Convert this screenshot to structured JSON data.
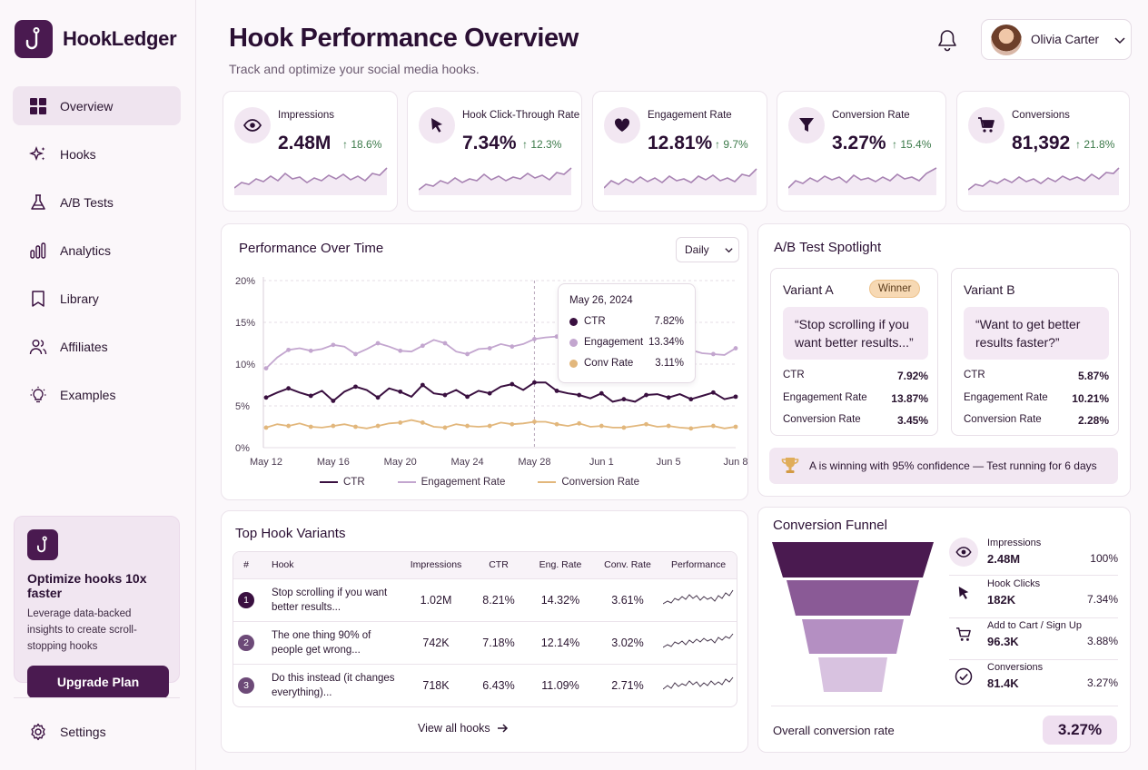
{
  "app": {
    "name": "HookLedger"
  },
  "sidebar": {
    "items": [
      {
        "label": "Overview",
        "icon": "grid-icon"
      },
      {
        "label": "Hooks",
        "icon": "sparkle-icon"
      },
      {
        "label": "A/B Tests",
        "icon": "flask-icon"
      },
      {
        "label": "Analytics",
        "icon": "bar-chart-icon"
      },
      {
        "label": "Library",
        "icon": "bookmark-icon"
      },
      {
        "label": "Affiliates",
        "icon": "users-icon"
      },
      {
        "label": "Examples",
        "icon": "lightbulb-icon"
      }
    ],
    "upgrade": {
      "title": "Optimize hooks 10x faster",
      "text": "Leverage data-backed insights to create scroll-stopping hooks",
      "button": "Upgrade Plan"
    },
    "settings": "Settings"
  },
  "header": {
    "title": "Hook Performance Overview",
    "subtitle": "Track and optimize your social media hooks.",
    "user": "Olivia Carter"
  },
  "kpis": [
    {
      "label": "Impressions",
      "value": "2.48M",
      "change": "18.6%",
      "icon": "eye-icon"
    },
    {
      "label": "Hook Click-Through Rate",
      "value": "7.34%",
      "change": "12.3%",
      "icon": "cursor-icon"
    },
    {
      "label": "Engagement Rate",
      "value": "12.81%",
      "change": "9.7%",
      "icon": "heart-icon"
    },
    {
      "label": "Conversion Rate",
      "value": "3.27%",
      "change": "15.4%",
      "icon": "funnel-icon"
    },
    {
      "label": "Conversions",
      "value": "81,392",
      "change": "21.8%",
      "icon": "cart-icon"
    }
  ],
  "performance": {
    "title": "Performance Over Time",
    "range": "Daily",
    "tooltip": {
      "date": "May 26, 2024",
      "rows": [
        {
          "label": "CTR",
          "value": "7.82%"
        },
        {
          "label": "Engagement",
          "value": "13.34%"
        },
        {
          "label": "Conv Rate",
          "value": "3.11%"
        }
      ]
    },
    "legend": [
      "CTR",
      "Engagement Rate",
      "Conversion Rate"
    ]
  },
  "chart_data": {
    "type": "line",
    "title": "Performance Over Time",
    "x_ticks": [
      "May 12",
      "May 16",
      "May 20",
      "May 24",
      "May 28",
      "Jun 1",
      "Jun 5",
      "Jun 8"
    ],
    "y_ticks": [
      "0%",
      "5%",
      "10%",
      "15%",
      "20%"
    ],
    "ylim": [
      0,
      20
    ],
    "grid": true,
    "legend_position": "bottom",
    "series": [
      {
        "name": "CTR",
        "color": "#3a1040",
        "values": [
          6.0,
          6.6,
          7.1,
          6.6,
          6.2,
          6.8,
          5.6,
          6.7,
          7.3,
          6.9,
          6.0,
          7.1,
          6.7,
          6.1,
          7.5,
          6.5,
          6.3,
          6.9,
          6.1,
          6.8,
          6.5,
          7.3,
          7.6,
          6.9,
          7.8,
          7.8,
          6.8,
          6.5,
          6.3,
          5.9,
          6.5,
          5.5,
          5.8,
          5.5,
          6.3,
          6.4,
          6.0,
          6.4,
          5.8,
          6.2,
          6.6,
          5.8,
          6.1
        ]
      },
      {
        "name": "Engagement Rate",
        "color": "#c3a6cf",
        "values": [
          9.5,
          10.8,
          11.7,
          11.9,
          11.6,
          11.8,
          12.3,
          12.1,
          11.2,
          11.8,
          12.5,
          12.1,
          11.6,
          11.5,
          12.2,
          12.9,
          12.5,
          11.5,
          11.2,
          11.8,
          11.9,
          12.4,
          12.1,
          12.4,
          13.0,
          13.2,
          13.3,
          13.0,
          12.8,
          12.0,
          11.1,
          11.6,
          11.8,
          11.3,
          11.6,
          11.2,
          10.8,
          11.7,
          11.7,
          11.3,
          11.2,
          11.1,
          11.9
        ]
      },
      {
        "name": "Conversion Rate",
        "color": "#e2b77c",
        "values": [
          2.4,
          2.8,
          2.6,
          2.9,
          2.5,
          2.4,
          2.6,
          2.8,
          2.5,
          2.3,
          2.6,
          2.9,
          3.0,
          3.3,
          3.0,
          2.5,
          2.4,
          2.8,
          2.6,
          2.5,
          2.6,
          3.0,
          2.8,
          2.9,
          3.1,
          3.1,
          2.8,
          2.6,
          2.9,
          2.5,
          2.6,
          2.4,
          2.4,
          2.6,
          2.8,
          2.5,
          2.6,
          2.4,
          2.3,
          2.5,
          2.6,
          2.3,
          2.5
        ]
      }
    ]
  },
  "ab_test": {
    "title": "A/B Test Spotlight",
    "variants": [
      {
        "name": "Variant A",
        "badge": "Winner",
        "quote": "“Stop scrolling if you want better results...”",
        "metrics": [
          {
            "label": "CTR",
            "value": "7.92%"
          },
          {
            "label": "Engagement Rate",
            "value": "13.87%"
          },
          {
            "label": "Conversion Rate",
            "value": "3.45%"
          }
        ]
      },
      {
        "name": "Variant B",
        "badge": "",
        "quote": "“Want to get better results faster?”",
        "metrics": [
          {
            "label": "CTR",
            "value": "5.87%"
          },
          {
            "label": "Engagement Rate",
            "value": "10.21%"
          },
          {
            "label": "Conversion Rate",
            "value": "2.28%"
          }
        ]
      }
    ],
    "confidence": "A is winning with 95% confidence — Test running for 6 days"
  },
  "top_hooks": {
    "title": "Top Hook Variants",
    "columns": [
      "#",
      "Hook",
      "Impressions",
      "CTR",
      "Eng. Rate",
      "Conv. Rate",
      "Performance"
    ],
    "rows": [
      {
        "rank": "1",
        "hook": "Stop scrolling if you want better results...",
        "impressions": "1.02M",
        "ctr": "8.21%",
        "eng": "14.32%",
        "conv": "3.61%"
      },
      {
        "rank": "2",
        "hook": "The one thing 90% of people get wrong...",
        "impressions": "742K",
        "ctr": "7.18%",
        "eng": "12.14%",
        "conv": "3.02%"
      },
      {
        "rank": "3",
        "hook": "Do this instead (it changes everything)...",
        "impressions": "718K",
        "ctr": "6.43%",
        "eng": "11.09%",
        "conv": "2.71%"
      }
    ],
    "view_all": "View all hooks"
  },
  "funnel": {
    "title": "Conversion Funnel",
    "stages": [
      {
        "label": "Impressions",
        "value": "2.48M",
        "pct": "100%",
        "icon": "eye-icon",
        "color": "#4a1a50"
      },
      {
        "label": "Hook Clicks",
        "value": "182K",
        "pct": "7.34%",
        "icon": "cursor-icon",
        "color": "#8a5a96"
      },
      {
        "label": "Add to Cart / Sign Up",
        "value": "96.3K",
        "pct": "3.88%",
        "icon": "cart-icon",
        "color": "#b48fc2"
      },
      {
        "label": "Conversions",
        "value": "81.4K",
        "pct": "3.27%",
        "icon": "check-circle-icon",
        "color": "#d8c2e0"
      }
    ],
    "overall_label": "Overall conversion rate",
    "overall_value": "3.27%"
  }
}
